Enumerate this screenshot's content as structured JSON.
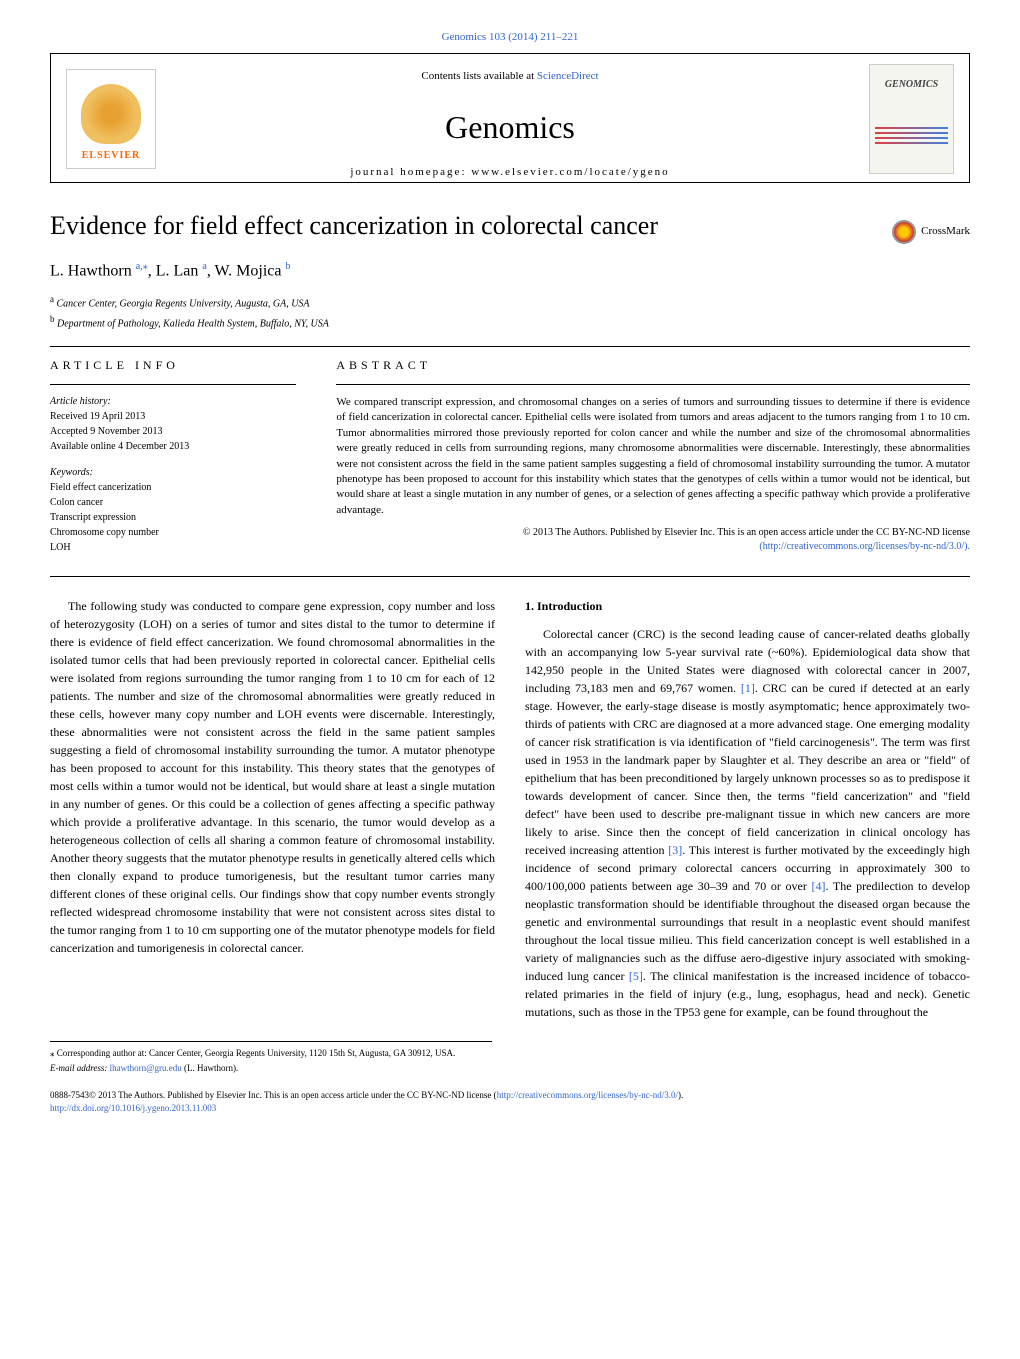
{
  "header": {
    "citation": "Genomics 103 (2014) 211–221",
    "contents_prefix": "Contents lists available at ",
    "contents_link": "ScienceDirect",
    "journal_name": "Genomics",
    "homepage_prefix": "journal homepage: ",
    "homepage_url": "www.elsevier.com/locate/ygeno",
    "elsevier_label": "ELSEVIER",
    "cover_label": "GENOMICS"
  },
  "crossmark": "CrossMark",
  "title": "Evidence for field effect cancerization in colorectal cancer",
  "authors": {
    "a1_name": "L. Hawthorn ",
    "a1_sup": "a,⁎",
    "a2_name": ", L. Lan ",
    "a2_sup": "a",
    "a3_name": ", W. Mojica ",
    "a3_sup": "b"
  },
  "affiliations": {
    "a_sup": "a",
    "a_text": " Cancer Center, Georgia Regents University, Augusta, GA, USA",
    "b_sup": "b",
    "b_text": " Department of Pathology, Kalieda Health System, Buffalo, NY, USA"
  },
  "info": {
    "label": "ARTICLE INFO",
    "history_title": "Article history:",
    "received": "Received 19 April 2013",
    "accepted": "Accepted 9 November 2013",
    "online": "Available online 4 December 2013",
    "keywords_title": "Keywords:",
    "kw1": "Field effect cancerization",
    "kw2": "Colon cancer",
    "kw3": "Transcript expression",
    "kw4": "Chromosome copy number",
    "kw5": "LOH"
  },
  "abstract": {
    "label": "ABSTRACT",
    "text": "We compared transcript expression, and chromosomal changes on a series of tumors and surrounding tissues to determine if there is evidence of field cancerization in colorectal cancer. Epithelial cells were isolated from tumors and areas adjacent to the tumors ranging from 1 to 10 cm. Tumor abnormalities mirrored those previously reported for colon cancer and while the number and size of the chromosomal abnormalities were greatly reduced in cells from surrounding regions, many chromosome abnormalities were discernable. Interestingly, these abnormalities were not consistent across the field in the same patient samples suggesting a field of chromosomal instability surrounding the tumor. A mutator phenotype has been proposed to account for this instability which states that the genotypes of cells within a tumor would not be identical, but would share at least a single mutation in any number of genes, or a selection of genes affecting a specific pathway which provide a proliferative advantage.",
    "copyright": "© 2013 The Authors. Published by Elsevier Inc. This is an open access article under the CC BY-NC-ND license",
    "license_url": "(http://creativecommons.org/licenses/by-nc-nd/3.0/)."
  },
  "leftcol": {
    "p1": "The following study was conducted to compare gene expression, copy number and loss of heterozygosity (LOH) on a series of tumor and sites distal to the tumor to determine if there is evidence of field effect cancerization. We found chromosomal abnormalities in the isolated tumor cells that had been previously reported in colorectal cancer. Epithelial cells were isolated from regions surrounding the tumor ranging from 1 to 10 cm for each of 12 patients. The number and size of the chromosomal abnormalities were greatly reduced in these cells, however many copy number and LOH events were discernable. Interestingly, these abnormalities were not consistent across the field in the same patient samples suggesting a field of chromosomal instability surrounding the tumor. A mutator phenotype has been proposed to account for this instability. This theory states that the genotypes of most cells within a tumor would not be identical, but would share at least a single mutation in any number of genes. Or this could be a collection of genes affecting a specific pathway which provide a proliferative advantage. In this scenario, the tumor would develop as a heterogeneous collection of cells all sharing a common feature of chromosomal instability. Another theory suggests that the mutator phenotype results in genetically altered cells which then clonally expand to produce tumorigenesis, but the resultant tumor carries many different clones of these original cells. Our findings show that copy number events strongly reflected widespread chromosome instability that were not consistent across sites distal to the tumor ranging from 1 to 10 cm supporting one of the mutator phenotype models for field cancerization and tumorigenesis in colorectal cancer."
  },
  "rightcol": {
    "heading": "1. Introduction",
    "p1a": "Colorectal cancer (CRC) is the second leading cause of cancer-related deaths globally with an accompanying low 5-year survival rate (~60%). Epidemiological data show that 142,950 people in the United States were diagnosed with colorectal cancer in 2007, including 73,183 men and 69,767 women. ",
    "ref1": "[1]",
    "p1b": ". CRC can be cured if detected at an early stage. However, the early-stage disease is mostly asymptomatic; hence approximately two-thirds of patients with CRC are diagnosed at a more advanced stage. One emerging modality of cancer risk stratification is via identification of \"field carcinogenesis\". The term was first used in 1953 in the landmark paper by Slaughter et al. They describe an area or \"field\" of epithelium that has been preconditioned by largely unknown processes so as to predispose it towards development of cancer. Since then, the terms \"field cancerization\" and \"field defect\" have been used to describe pre-malignant tissue in which new cancers are more likely to arise. Since then the concept of field cancerization in clinical oncology has received increasing attention ",
    "ref3": "[3]",
    "p1c": ". This interest is further motivated by the exceedingly high incidence of second primary colorectal cancers occurring in approximately 300 to 400/100,000 patients between age 30–39 and 70 or over ",
    "ref4": "[4]",
    "p1d": ". The predilection to develop neoplastic transformation should be identifiable throughout the diseased organ because the genetic and environmental surroundings that result in a neoplastic event should manifest throughout the local tissue milieu. This field cancerization concept is well established in a variety of malignancies such as the diffuse aero-digestive injury associated with smoking-induced lung cancer ",
    "ref5": "[5]",
    "p1e": ". The clinical manifestation is the increased incidence of tobacco-related primaries in the field of injury (e.g., lung, esophagus, head and neck). Genetic mutations, such as those in the TP53 gene for example, can be found throughout the"
  },
  "footnotes": {
    "corr": "⁎ Corresponding author at: Cancer Center, Georgia Regents University, 1120 15th St, Augusta, GA 30912, USA.",
    "email_label": "E-mail address: ",
    "email": "lhawthorn@gru.edu",
    "email_suffix": " (L. Hawthorn)."
  },
  "bottom": {
    "issn": "0888-7543© 2013 The Authors. Published by Elsevier Inc. This is an open access article under the CC BY-NC-ND license (",
    "license": "http://creativecommons.org/licenses/by-nc-nd/3.0/",
    "close": ").",
    "doi": "http://dx.doi.org/10.1016/j.ygeno.2013.11.003"
  }
}
